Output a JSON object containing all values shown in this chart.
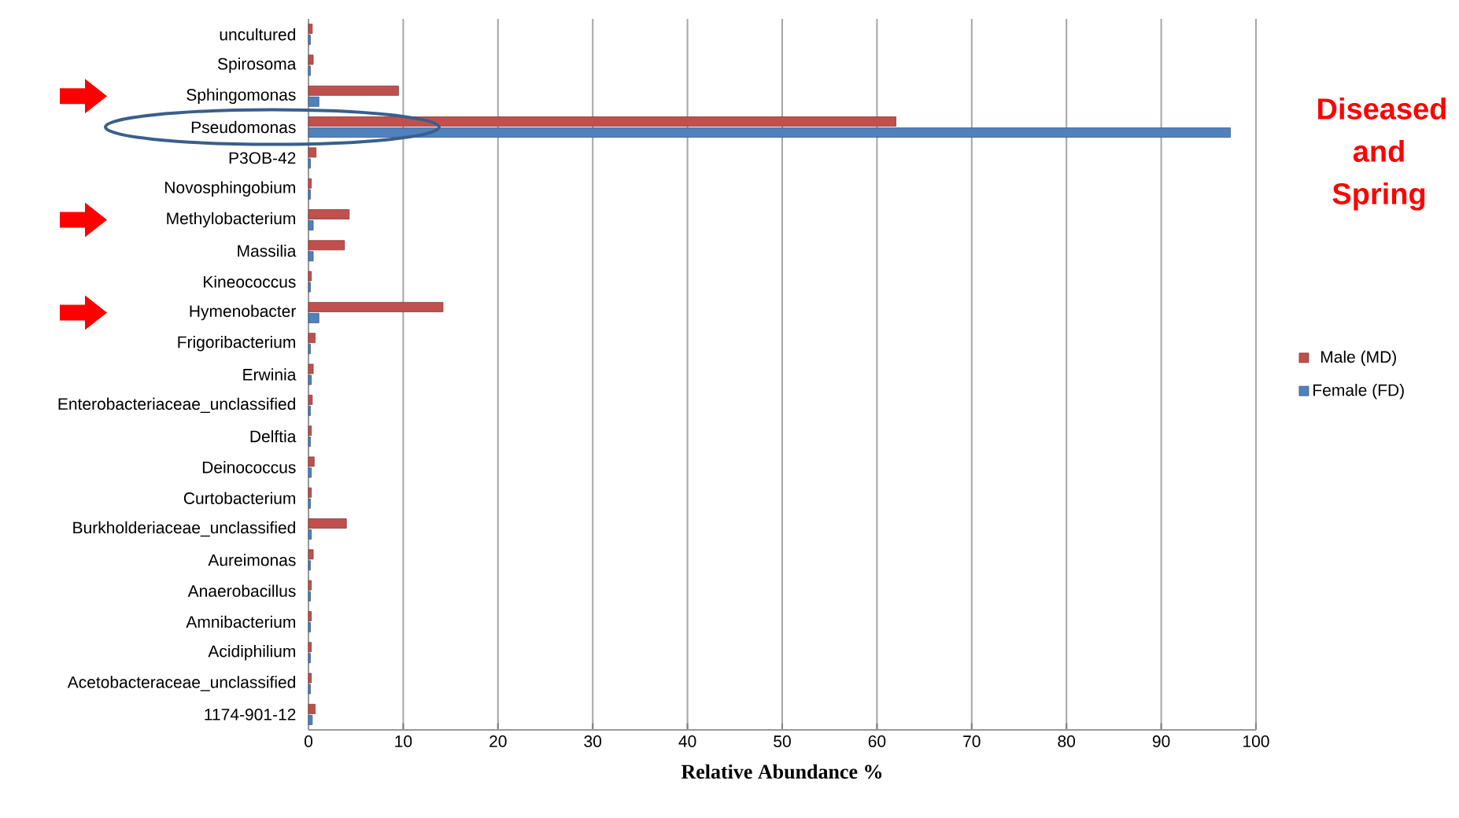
{
  "chart_data": {
    "type": "bar",
    "orientation": "horizontal",
    "categories": [
      "uncultured",
      "Spirosoma",
      "Sphingomonas",
      "Pseudomonas",
      "P3OB-42",
      "Novosphingobium",
      "Methylobacterium",
      "Massilia",
      "Kineococcus",
      "Hymenobacter",
      "Frigoribacterium",
      "Erwinia",
      "Enterobacteriaceae_unclassified",
      "Delftia",
      "Deinococcus",
      "Curtobacterium",
      "Burkholderiaceae_unclassified",
      "Aureimonas",
      "Anaerobacillus",
      "Amnibacterium",
      "Acidiphilium",
      "Acetobacteraceae_unclassified",
      "1174-901-12"
    ],
    "series": [
      {
        "name": "Male (MD)",
        "color": "#c0504d",
        "values": [
          0.4,
          0.5,
          9.5,
          62,
          0.8,
          0.3,
          4.3,
          3.8,
          0.3,
          14.2,
          0.7,
          0.5,
          0.4,
          0.3,
          0.6,
          0.3,
          4,
          0.5,
          0.3,
          0.3,
          0.3,
          0.3,
          0.7
        ]
      },
      {
        "name": "Female (FD)",
        "color": "#4f81bd",
        "values": [
          0.2,
          0.2,
          1.1,
          97.3,
          0.2,
          0.2,
          0.5,
          0.5,
          0.2,
          1.1,
          0.2,
          0.3,
          0.2,
          0.2,
          0.3,
          0.2,
          0.3,
          0.2,
          0.2,
          0.2,
          0.2,
          0.2,
          0.4
        ]
      }
    ],
    "xlim": [
      0,
      100
    ],
    "xticks": [
      0,
      10,
      20,
      30,
      40,
      50,
      60,
      70,
      80,
      90,
      100
    ],
    "xlabel": "Relative Abundance %",
    "annotations": [
      "Diseased and Spring"
    ],
    "grid": "x",
    "legend": "right"
  }
}
